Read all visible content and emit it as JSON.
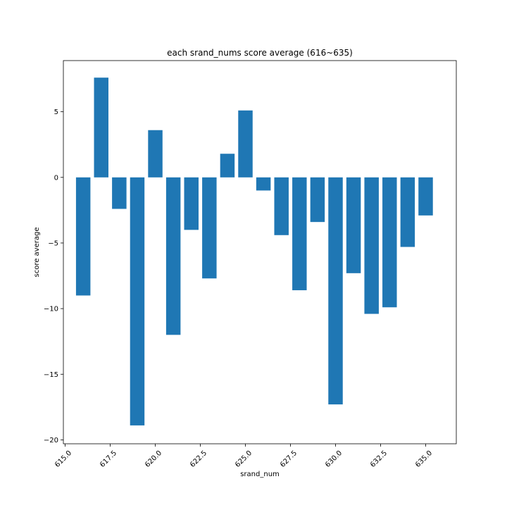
{
  "chart_data": {
    "type": "bar",
    "title": "each srand_nums score average (616~635)",
    "xlabel": "srand_num",
    "ylabel": "score average",
    "x": [
      616,
      617,
      618,
      619,
      620,
      621,
      622,
      623,
      624,
      625,
      626,
      627,
      628,
      629,
      630,
      631,
      632,
      633,
      634,
      635
    ],
    "values": [
      -9.0,
      7.6,
      -2.4,
      -18.9,
      3.6,
      -12.0,
      -4.0,
      -7.7,
      1.8,
      5.1,
      -1.0,
      -4.4,
      -8.6,
      -3.4,
      -17.3,
      -7.3,
      -10.4,
      -9.9,
      -5.3,
      -2.9
    ],
    "xlim": [
      614.9,
      636.7
    ],
    "ylim": [
      -20.3,
      8.9
    ],
    "xticks": [
      "615.0",
      "617.5",
      "620.0",
      "622.5",
      "625.0",
      "627.5",
      "630.0",
      "632.5",
      "635.0"
    ],
    "yticks": [
      "5",
      "0",
      "−5",
      "−10",
      "−15",
      "−20"
    ],
    "bar_color": "#1f77b4",
    "grid": false,
    "legend": "none"
  }
}
